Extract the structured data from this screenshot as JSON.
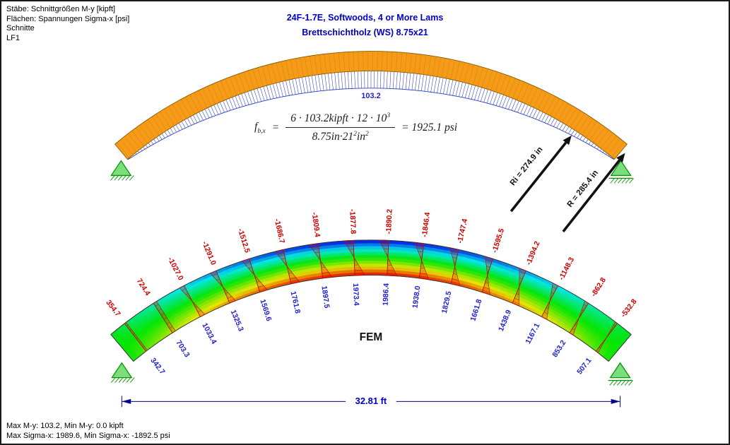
{
  "header": {
    "lines": [
      "Stäbe: Schnittgrößen M-y [kipft]",
      "Flächen: Spannungen Sigma-x [psi]",
      "Schnitte",
      "LF1"
    ]
  },
  "title": {
    "line1": "24F-1.7E, Softwoods, 4 or More Lams",
    "line2": "Brettschichtholz (WS) 8.75x21"
  },
  "formula": {
    "lhs_base": "f",
    "lhs_sub": "b,x",
    "equals": "=",
    "num_main": "6 · 103.2kipft · 12 · 10",
    "num_sup": "3",
    "den_main": "8.75in·21",
    "den_sup": "2",
    "den_tail": "in",
    "den_sup2": "2",
    "result": "= 1925.1 psi"
  },
  "moment_diagram": {
    "peak_label": "103.2"
  },
  "radius_arrows": {
    "inner_label": "Ri = 274.9 in",
    "outer_label": "R = 285.4 in"
  },
  "fem_label": "FEM",
  "dimension": {
    "label": "32.81 ft"
  },
  "sections": {
    "top_values": [
      "354.7",
      "724.4",
      "-1027.0",
      "-1291.0",
      "-1512.5",
      "-1686.7",
      "-1809.4",
      "-1877.8",
      "-1890.2",
      "-1846.4",
      "-1747.4",
      "-1595.5",
      "-1394.2",
      "-1148.3",
      "-862.8",
      "-532.8"
    ],
    "bottom_values": [
      "342.7",
      "703.3",
      "1033.4",
      "1325.3",
      "1569.6",
      "1761.8",
      "1897.5",
      "1973.4",
      "1986.4",
      "1938.0",
      "1829.5",
      "1661.8",
      "1438.9",
      "1167.1",
      "853.2",
      "507.1"
    ],
    "sigma_max": 1986.4,
    "sigma_min": -1890.2
  },
  "footer": {
    "lines": [
      "Max M-y: 103.2, Min M-y: 0.0 kipft",
      "Max Sigma-x: 1989.6, Min Sigma-x: -1892.5 psi"
    ]
  },
  "colors": {
    "member_orange": "#F59B18",
    "member_edge": "#8A5A00",
    "title_blue": "#0000CC",
    "moment_blue": "#2C3EC2",
    "positive_label_blue": "#1F1FCC",
    "negative_label_red": "#CC0000",
    "dimension_navy": "#00008B",
    "support_green_fill": "#7ADE7A",
    "support_green_stroke": "#089408",
    "arrow_black": "#111111"
  }
}
